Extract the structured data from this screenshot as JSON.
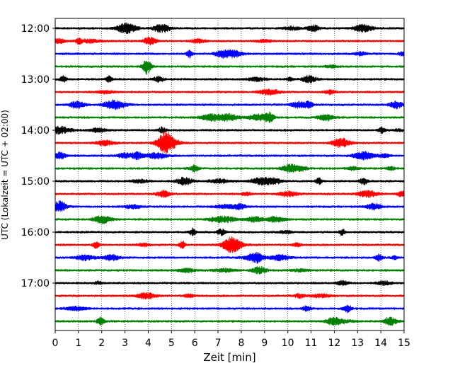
{
  "chart_data": {
    "type": "line",
    "title": "",
    "xlabel": "Zeit  [min]",
    "ylabel": "UTC (Lokalzeit = UTC + 02:00)",
    "xlim": [
      0,
      15
    ],
    "x_ticks": [
      "0",
      "1",
      "2",
      "3",
      "4",
      "5",
      "6",
      "7",
      "8",
      "9",
      "10",
      "11",
      "12",
      "13",
      "14",
      "15"
    ],
    "y_ticks": [
      "12:00",
      "13:00",
      "14:00",
      "15:00",
      "16:00",
      "17:00"
    ],
    "x_grid": true,
    "y_grid": false,
    "traces_per_hour": 4,
    "trace_interval_min": 15,
    "trace_colors": [
      "#000000",
      "#ff0000",
      "#0000ff",
      "#008000"
    ],
    "trace_start_times": [
      "12:00",
      "12:15",
      "12:30",
      "12:45",
      "13:00",
      "13:15",
      "13:30",
      "13:45",
      "14:00",
      "14:15",
      "14:30",
      "14:45",
      "15:00",
      "15:15",
      "15:30",
      "15:45",
      "16:00",
      "16:15",
      "16:30",
      "16:45",
      "17:00",
      "17:15",
      "17:30",
      "17:45"
    ]
  }
}
